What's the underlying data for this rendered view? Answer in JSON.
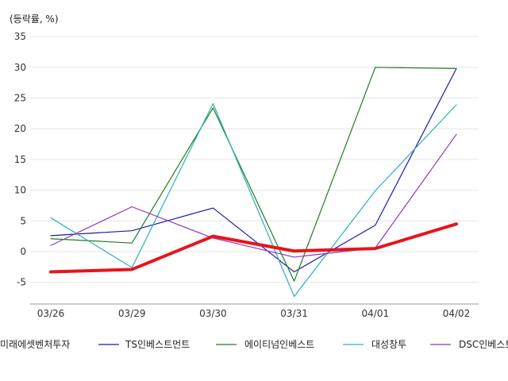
{
  "chart_data": {
    "type": "line",
    "unit_label": "(등락률, %)",
    "categories": [
      "03/26",
      "03/29",
      "03/30",
      "03/31",
      "04/01",
      "04/02"
    ],
    "ylim": [
      -8,
      35
    ],
    "yticks": [
      -5,
      0,
      5,
      10,
      15,
      20,
      25,
      30,
      35
    ],
    "grid": "horizontal",
    "legend_position": "bottom",
    "series": [
      {
        "name": "미래에셋벤처투자",
        "color": "#e8141c",
        "emphasis": true,
        "values": [
          -3.3,
          -2.9,
          2.5,
          0.1,
          0.5,
          4.5
        ]
      },
      {
        "name": "TS인베스트먼트",
        "color": "#1a1aaa",
        "values": [
          2.6,
          3.4,
          7.1,
          -3.3,
          4.3,
          29.8
        ]
      },
      {
        "name": "에이티넘인베스트",
        "color": "#1f7d1f",
        "values": [
          2.1,
          1.4,
          23.4,
          -4.8,
          30.0,
          29.8
        ]
      },
      {
        "name": "대성창투",
        "color": "#2ab0b8",
        "values": [
          5.5,
          -2.6,
          24.1,
          -7.3,
          9.9,
          23.9
        ]
      },
      {
        "name": "DSC인베스트먼트",
        "color": "#8a38c8",
        "values": [
          1.0,
          7.3,
          2.2,
          -0.9,
          0.6,
          19.1
        ]
      }
    ]
  }
}
